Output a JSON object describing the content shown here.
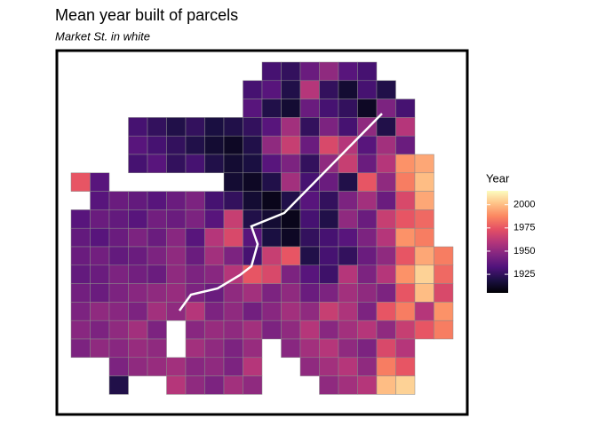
{
  "chart_data": {
    "type": "heatmap",
    "title": "Mean year built of parcels",
    "subtitle": "Market St. in white",
    "legend_title": "Year",
    "colorscale": [
      "#000004",
      "#1c1044",
      "#4f127b",
      "#812581",
      "#b5367a",
      "#e55064",
      "#fb8761",
      "#fec287",
      "#fcfdbf"
    ],
    "color_lim": [
      1905,
      2015
    ],
    "color_ticks": [
      1925,
      1950,
      1975,
      2000
    ],
    "rows": [
      [
        null,
        null,
        null,
        null,
        null,
        null,
        null,
        null,
        null,
        null,
        1930,
        1925,
        1940,
        1950,
        1935,
        1930,
        null,
        null,
        null,
        null
      ],
      [
        null,
        null,
        null,
        null,
        null,
        null,
        null,
        null,
        null,
        1930,
        1935,
        1920,
        1960,
        1925,
        1915,
        1930,
        1920,
        null,
        null,
        null
      ],
      [
        null,
        null,
        null,
        null,
        null,
        null,
        null,
        null,
        null,
        1935,
        1920,
        1915,
        1940,
        1930,
        1925,
        1912,
        1945,
        1930,
        null,
        null
      ],
      [
        null,
        null,
        null,
        1930,
        1925,
        1920,
        1925,
        1918,
        1920,
        1925,
        1935,
        1955,
        1925,
        1945,
        1930,
        1950,
        1920,
        1960,
        null,
        null
      ],
      [
        null,
        null,
        null,
        1935,
        1930,
        1925,
        1920,
        1915,
        1912,
        1920,
        1950,
        1965,
        1940,
        1970,
        1960,
        1935,
        1955,
        1940,
        null,
        null
      ],
      [
        null,
        null,
        null,
        1930,
        1935,
        1925,
        1930,
        1920,
        1915,
        1918,
        1935,
        1945,
        1925,
        1950,
        1965,
        1940,
        1960,
        1990,
        1995,
        null
      ],
      [
        1975,
        1935,
        null,
        null,
        null,
        null,
        null,
        null,
        1915,
        1912,
        1920,
        1955,
        1930,
        1940,
        1920,
        1975,
        1950,
        1985,
        2000,
        null
      ],
      [
        null,
        1935,
        1940,
        1938,
        1935,
        1940,
        1945,
        1930,
        1925,
        1915,
        1910,
        1920,
        1935,
        1925,
        1945,
        1955,
        1940,
        1970,
        1995,
        null
      ],
      [
        1935,
        1940,
        1938,
        1935,
        1942,
        1940,
        1945,
        1935,
        1965,
        1920,
        1915,
        1910,
        1930,
        1920,
        1950,
        1940,
        1965,
        1975,
        1980,
        null
      ],
      [
        1938,
        1935,
        1940,
        1945,
        1940,
        1948,
        1935,
        1960,
        1970,
        1935,
        1918,
        1912,
        1925,
        1930,
        1935,
        1945,
        1960,
        1990,
        1985,
        null
      ],
      [
        1940,
        1942,
        1938,
        1940,
        1945,
        1950,
        1940,
        1955,
        1945,
        1930,
        1965,
        1975,
        1920,
        1930,
        1925,
        1940,
        1950,
        1975,
        1995,
        1985
      ],
      [
        1938,
        1940,
        1945,
        1942,
        1940,
        1950,
        1945,
        1948,
        1960,
        1975,
        1970,
        1945,
        1935,
        1928,
        1960,
        1945,
        1960,
        1990,
        2005,
        1980
      ],
      [
        1942,
        1940,
        1945,
        1948,
        1950,
        1952,
        1945,
        1940,
        1950,
        1955,
        1945,
        1950,
        1940,
        1945,
        1955,
        1950,
        1945,
        1975,
        2000,
        1970
      ],
      [
        1945,
        1950,
        1948,
        1945,
        1955,
        1950,
        1960,
        1945,
        1950,
        1942,
        1948,
        1955,
        1950,
        1965,
        1958,
        1945,
        1975,
        1985,
        1960,
        1990
      ],
      [
        1948,
        1945,
        1950,
        1955,
        1945,
        null,
        1948,
        1952,
        1950,
        1955,
        1945,
        1950,
        1960,
        1948,
        1955,
        1960,
        1950,
        1965,
        1975,
        1985
      ],
      [
        1945,
        1950,
        1948,
        1952,
        1950,
        null,
        1955,
        1950,
        1945,
        1952,
        null,
        1948,
        1955,
        1960,
        1950,
        1945,
        1970,
        1960,
        null,
        null
      ],
      [
        null,
        null,
        1945,
        1950,
        1952,
        1955,
        1948,
        1950,
        1945,
        1960,
        null,
        null,
        1950,
        1955,
        1960,
        1950,
        1985,
        1975,
        null,
        null
      ],
      [
        null,
        null,
        1920,
        null,
        null,
        1960,
        1950,
        1945,
        1955,
        1950,
        null,
        null,
        null,
        1950,
        1955,
        1960,
        2000,
        2005,
        null,
        null
      ]
    ]
  }
}
